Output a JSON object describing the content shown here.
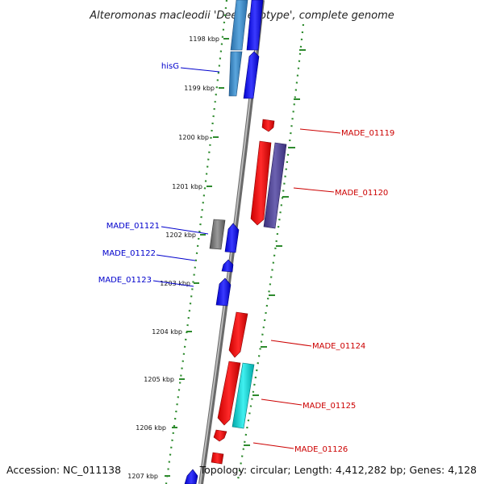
{
  "title": "Alteromonas macleodii 'Deep ecotype', complete genome",
  "footer": {
    "accession": "Accession: NC_011138",
    "summary": "Topology: circular; Length: 4,412,282 bp; Genes: 4,128"
  },
  "ticks": [
    "1198 kbp",
    "1199 kbp",
    "1200 kbp",
    "1201 kbp",
    "1202 kbp",
    "1203 kbp",
    "1204 kbp",
    "1205 kbp",
    "1206 kbp",
    "1207 kbp"
  ],
  "genes": [
    {
      "label": "hisG",
      "strand": "forward",
      "color": "#0000cc"
    },
    {
      "label": "MADE_01119",
      "strand": "reverse",
      "color": "#cc0000"
    },
    {
      "label": "MADE_01120",
      "strand": "reverse",
      "color": "#cc0000"
    },
    {
      "label": "MADE_01121",
      "strand": "forward",
      "color": "#0000cc"
    },
    {
      "label": "MADE_01122",
      "strand": "forward",
      "color": "#0000cc"
    },
    {
      "label": "MADE_01123",
      "strand": "forward",
      "color": "#0000cc"
    },
    {
      "label": "MADE_01124",
      "strand": "reverse",
      "color": "#cc0000"
    },
    {
      "label": "MADE_01125",
      "strand": "reverse",
      "color": "#cc0000"
    },
    {
      "label": "MADE_01126",
      "strand": "reverse",
      "color": "#cc0000"
    }
  ],
  "colors": {
    "forward_cds": "#0000ff",
    "reverse_cds": "#ff0000",
    "rna_track": "#2e86c1",
    "orthology_track": "#483d8b",
    "cyan_feature": "#00cccc",
    "gray_feature": "#777777",
    "backbone": "#888888",
    "ring_dots": "#2e8b2e"
  }
}
